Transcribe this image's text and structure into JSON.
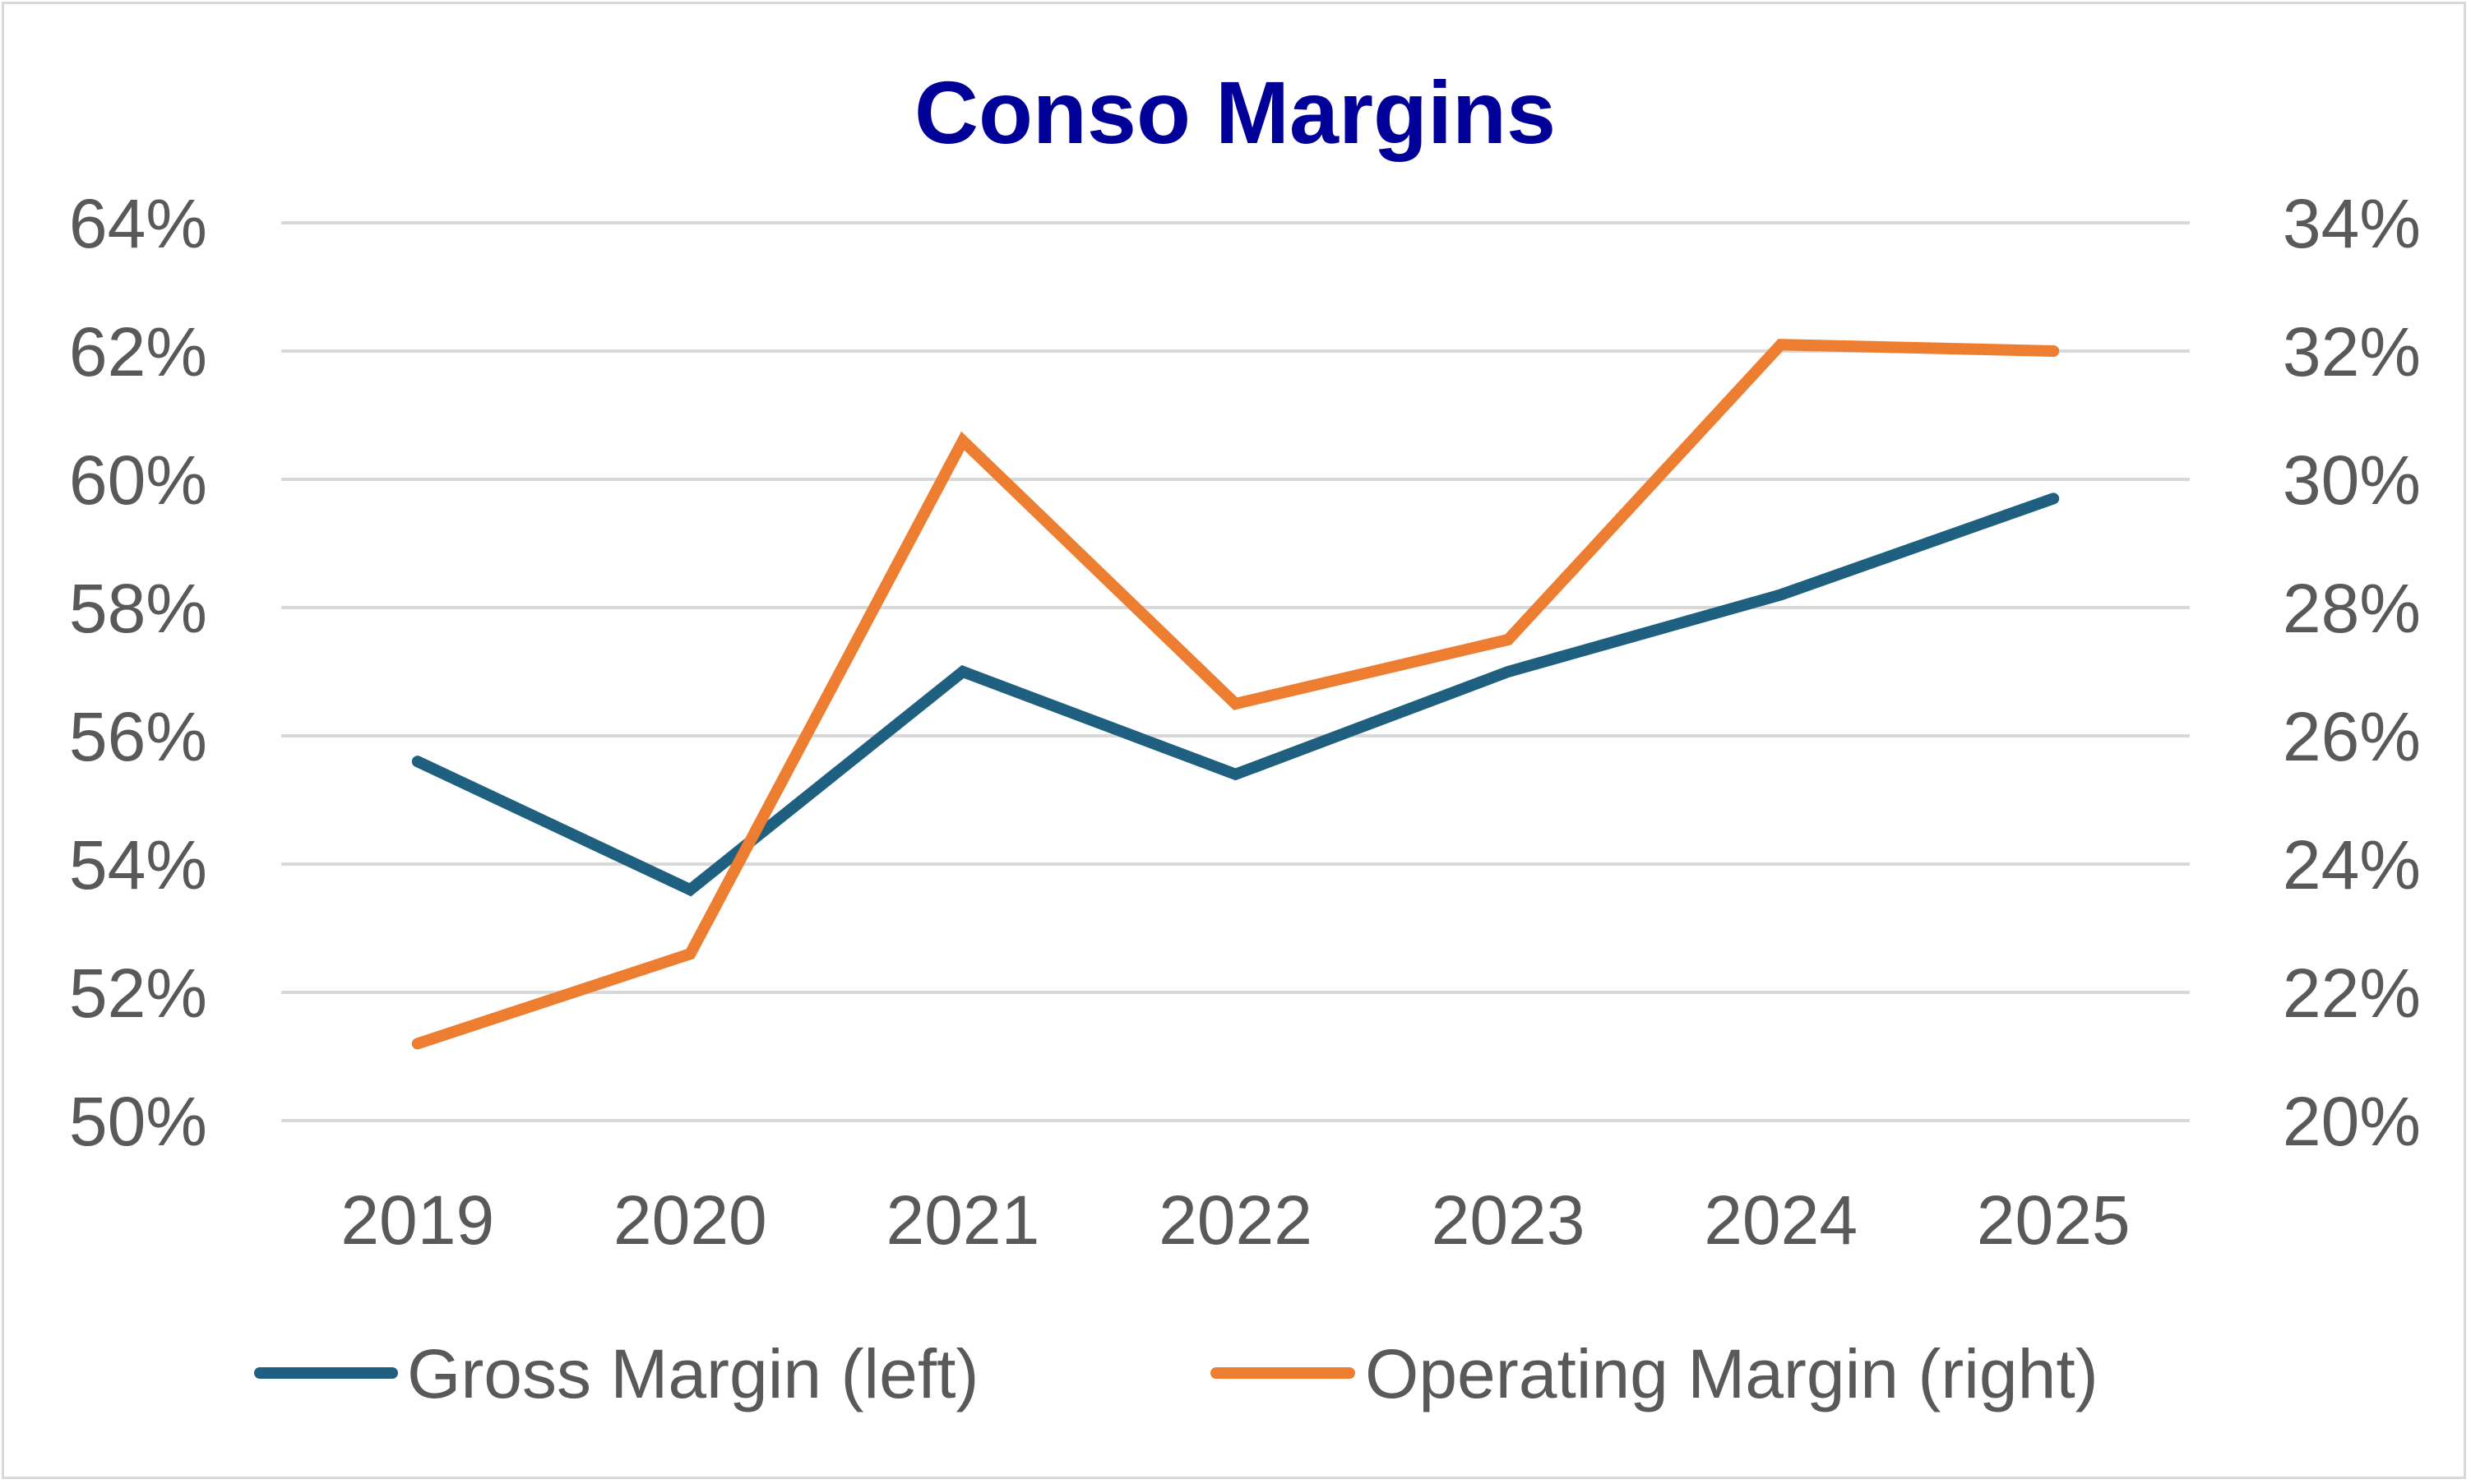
{
  "chart_data": {
    "type": "line",
    "title": "Conso Margins",
    "categories": [
      "2019",
      "2020",
      "2021",
      "2022",
      "2023",
      "2024",
      "2025"
    ],
    "left_axis": {
      "ticks": [
        "50%",
        "52%",
        "54%",
        "56%",
        "58%",
        "60%",
        "62%",
        "64%"
      ],
      "min": 50,
      "max": 64,
      "step": 2
    },
    "right_axis": {
      "ticks": [
        "20%",
        "22%",
        "24%",
        "26%",
        "28%",
        "30%",
        "32%",
        "34%"
      ],
      "min": 20,
      "max": 34,
      "step": 2
    },
    "series": [
      {
        "name": "Gross Margin (left)",
        "axis": "left",
        "color": "#1f5f7f",
        "values": [
          55.6,
          53.6,
          57.0,
          55.4,
          57.0,
          58.2,
          59.7
        ]
      },
      {
        "name": "Operating Margin (right)",
        "axis": "right",
        "color": "#ed7d31",
        "values": [
          21.2,
          22.6,
          30.6,
          26.5,
          27.5,
          32.1,
          32.0
        ]
      }
    ],
    "grid": true,
    "legend": "bottom",
    "title_color": "#000099"
  }
}
